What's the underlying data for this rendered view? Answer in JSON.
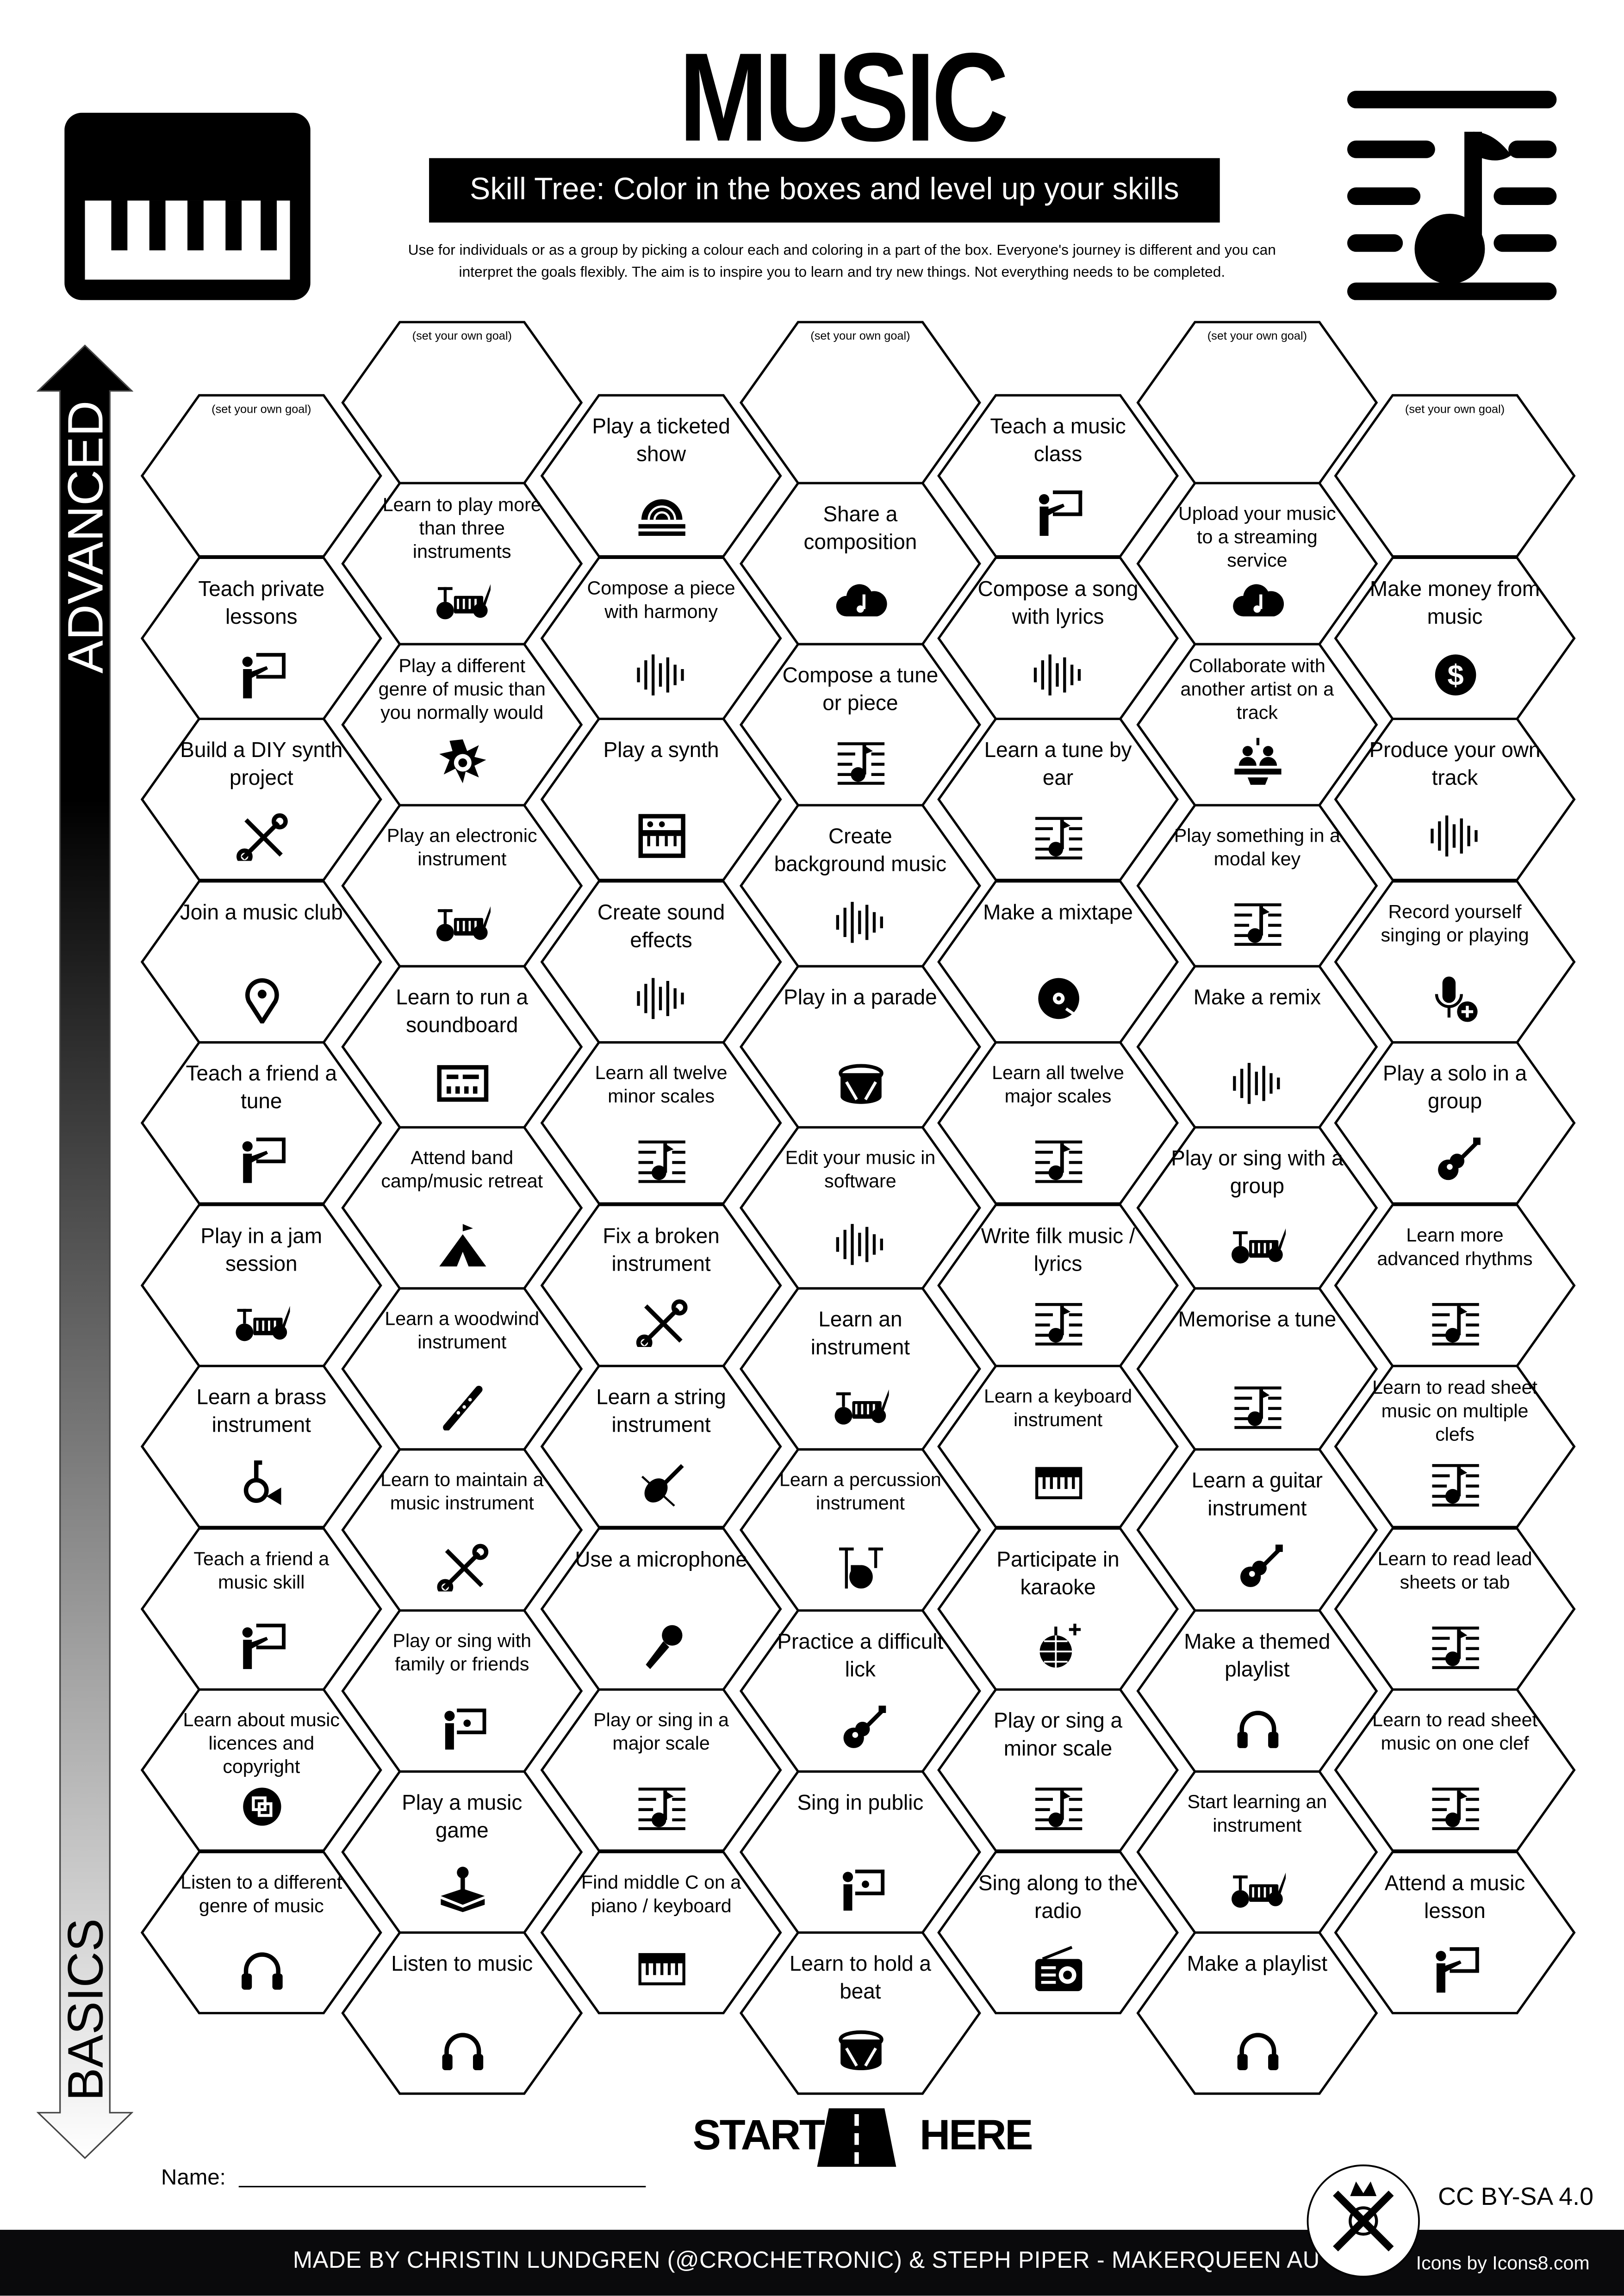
{
  "header": {
    "title": "MUSIC",
    "subtitle": "Skill Tree:  Color in the boxes and level up your skills",
    "description_line1": "Use for individuals or as a group by picking a colour each and coloring in a part of the box.  Everyone's journey is different and you can",
    "description_line2": "interpret the goals flexibly.  The aim is to inspire you to learn and try new things. Not everything needs to be completed.",
    "left_icon": "piano-icon",
    "right_icon": "music-lines-icon"
  },
  "axis": {
    "top_label": "ADVANCED",
    "bottom_label": "BASICS"
  },
  "goal_label": "(set your own goal)",
  "columns": [
    [
      {
        "goal": true
      },
      {
        "label": "Teach private lessons",
        "icon": "teacher"
      },
      {
        "label": "Build a DIY synth project",
        "icon": "tools"
      },
      {
        "label": "Join a music club",
        "icon": "pin"
      },
      {
        "label": "Teach a friend a tune",
        "icon": "teacher"
      },
      {
        "label": "Play in a jam session",
        "icon": "band"
      },
      {
        "label": "Learn a brass instrument",
        "icon": "horn"
      },
      {
        "label": "Teach a friend a music skill",
        "icon": "teacher"
      },
      {
        "label": "Learn about music licences and copyright",
        "icon": "copyright"
      },
      {
        "label": "Listen to a different genre of music",
        "icon": "headphones"
      }
    ],
    [
      {
        "goal": true
      },
      {
        "label": "Learn to play more than three instruments",
        "icon": "band"
      },
      {
        "label": "Play a different genre of music than you normally would",
        "icon": "punk"
      },
      {
        "label": "Play an electronic instrument",
        "icon": "band"
      },
      {
        "label": "Learn to run a soundboard",
        "icon": "soundboard"
      },
      {
        "label": "Attend band camp/music retreat",
        "icon": "tent"
      },
      {
        "label": "Learn a woodwind instrument",
        "icon": "flute"
      },
      {
        "label": "Learn to maintain a music instrument",
        "icon": "tools"
      },
      {
        "label": "Play or sing with family or friends",
        "icon": "sing"
      },
      {
        "label": "Play a music game",
        "icon": "joystick"
      },
      {
        "label": "Listen to music",
        "icon": "headphones"
      }
    ],
    [
      {
        "label": "Play a ticketed show",
        "icon": "stage"
      },
      {
        "label": "Compose a piece with harmony",
        "icon": "wave"
      },
      {
        "label": "Play a synth",
        "icon": "synth"
      },
      {
        "label": "Create sound effects",
        "icon": "wave"
      },
      {
        "label": "Learn all twelve minor scales",
        "icon": "score"
      },
      {
        "label": "Fix a broken instrument",
        "icon": "tools"
      },
      {
        "label": "Learn a string instrument",
        "icon": "violin"
      },
      {
        "label": "Use a microphone",
        "icon": "mic"
      },
      {
        "label": "Play or sing in a major scale",
        "icon": "score"
      },
      {
        "label": "Find middle C on a piano / keyboard",
        "icon": "keyboard"
      }
    ],
    [
      {
        "goal": true
      },
      {
        "label": "Share a composition",
        "icon": "cloud"
      },
      {
        "label": "Compose a tune or piece",
        "icon": "score"
      },
      {
        "label": "Create background music",
        "icon": "wave"
      },
      {
        "label": "Play in a parade",
        "icon": "drum"
      },
      {
        "label": "Edit your music in software",
        "icon": "wave"
      },
      {
        "label": "Learn an instrument",
        "icon": "band"
      },
      {
        "label": "Learn a percussion instrument",
        "icon": "drumkit"
      },
      {
        "label": "Practice a difficult lick",
        "icon": "guitar"
      },
      {
        "label": "Sing in public",
        "icon": "sing"
      },
      {
        "label": "Learn to hold a beat",
        "icon": "drum"
      }
    ],
    [
      {
        "label": "Teach a music class",
        "icon": "teacher"
      },
      {
        "label": "Compose a song with lyrics",
        "icon": "wave"
      },
      {
        "label": "Learn a tune by ear",
        "icon": "score"
      },
      {
        "label": "Make a mixtape",
        "icon": "disc"
      },
      {
        "label": "Learn all twelve major scales",
        "icon": "score"
      },
      {
        "label": "Write filk music / lyrics",
        "icon": "score"
      },
      {
        "label": "Learn a keyboard instrument",
        "icon": "keyboard"
      },
      {
        "label": "Participate in karaoke",
        "icon": "discoball"
      },
      {
        "label": "Play or sing a minor scale",
        "icon": "score"
      },
      {
        "label": "Sing along to the radio",
        "icon": "radio"
      }
    ],
    [
      {
        "goal": true
      },
      {
        "label": "Upload your music to a streaming service",
        "icon": "cloud"
      },
      {
        "label": "Collaborate with another artist on a track",
        "icon": "collab"
      },
      {
        "label": "Play something in a modal key",
        "icon": "score"
      },
      {
        "label": "Make a remix",
        "icon": "wave"
      },
      {
        "label": "Play or sing with a group",
        "icon": "band"
      },
      {
        "label": "Memorise a tune",
        "icon": "score"
      },
      {
        "label": "Learn a guitar instrument",
        "icon": "guitar"
      },
      {
        "label": "Make a themed playlist",
        "icon": "headphones"
      },
      {
        "label": "Start learning an instrument",
        "icon": "band"
      },
      {
        "label": "Make a playlist",
        "icon": "headphones"
      }
    ],
    [
      {
        "goal": true
      },
      {
        "label": "Make money from music",
        "icon": "dollar"
      },
      {
        "label": "Produce your own track",
        "icon": "wave"
      },
      {
        "label": "Record yourself singing or playing",
        "icon": "micplus"
      },
      {
        "label": "Play a solo in a group",
        "icon": "guitar"
      },
      {
        "label": "Learn more advanced rhythms",
        "icon": "score"
      },
      {
        "label": "Learn to read sheet music on multiple clefs",
        "icon": "score"
      },
      {
        "label": "Learn to read lead sheets or tab",
        "icon": "score"
      },
      {
        "label": "Learn to read sheet music on one clef",
        "icon": "score"
      },
      {
        "label": "Attend a music lesson",
        "icon": "teacher"
      }
    ]
  ],
  "start": {
    "left": "START",
    "right": "HERE",
    "icon": "road-icon"
  },
  "name_label": "Name:",
  "license": "CC BY-SA 4.0",
  "footer": {
    "credit": "MADE BY CHRISTIN LUNDGREN (@CROCHETRONIC) & STEPH PIPER  -  MAKERQUEEN AU",
    "icons_credit": "Icons by Icons8.com",
    "logo": "makerqueen-logo"
  }
}
